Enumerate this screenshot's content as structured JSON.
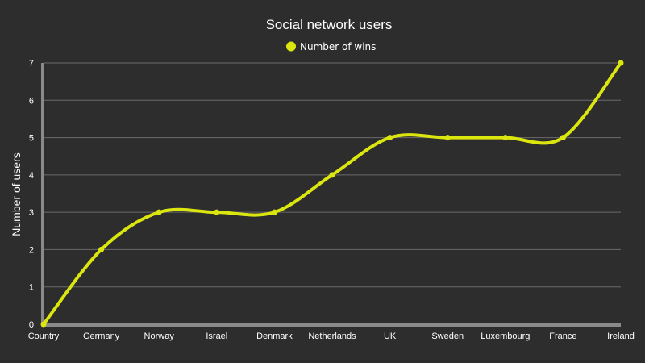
{
  "chart_data": {
    "type": "line",
    "title": "Social network users",
    "xlabel": "",
    "ylabel": "Number of users",
    "categories": [
      "Country",
      "Germany",
      "Norway",
      "Israel",
      "Denmark",
      "Netherlands",
      "UK",
      "Sweden",
      "Luxembourg",
      "France",
      "Ireland"
    ],
    "series": [
      {
        "name": "Number of wins",
        "values": [
          0,
          2,
          3,
          3,
          3,
          4,
          5,
          5,
          5,
          5,
          7
        ]
      }
    ],
    "ylim": [
      0,
      7
    ],
    "yticks": [
      0,
      1,
      2,
      3,
      4,
      5,
      6,
      7
    ],
    "grid": true,
    "legend": "top-center",
    "smooth": true,
    "colors": {
      "background": "#2d2d2d",
      "series": "#dbe60f",
      "text": "#ffffff",
      "grid": "#6a6a6a",
      "axis": "#8a8a8a"
    }
  }
}
